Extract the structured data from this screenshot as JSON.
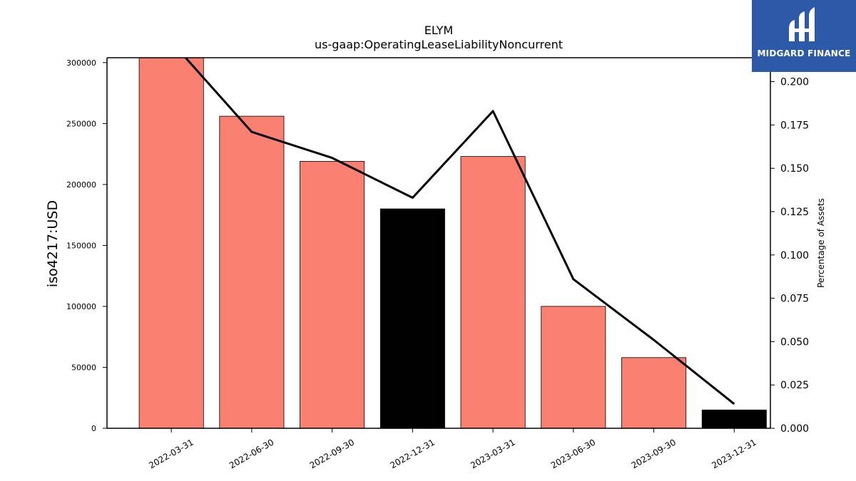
{
  "chart_data": {
    "type": "bar",
    "title": "ELYM",
    "subtitle": "us-gaap:OperatingLeaseLiabilityNoncurrent",
    "ylabel": "iso4217:USD",
    "y2label": "Percentage of Assets",
    "categories": [
      "2022-03-31",
      "2022-06-30",
      "2022-09-30",
      "2022-12-31",
      "2023-03-31",
      "2023-06-30",
      "2023-09-30",
      "2023-12-31"
    ],
    "ylim": [
      0,
      304000
    ],
    "y2lim": [
      0,
      0.2138
    ],
    "yticks": [
      0,
      50000,
      100000,
      150000,
      200000,
      250000,
      300000
    ],
    "y2ticks": [
      0.0,
      0.025,
      0.05,
      0.075,
      0.1,
      0.125,
      0.15,
      0.175,
      0.2
    ],
    "series": [
      {
        "type": "bar",
        "values": [
          304000,
          256000,
          219000,
          180000,
          223000,
          100000,
          58000,
          15000
        ],
        "colors": [
          "#fa8072",
          "#fa8072",
          "#fa8072",
          "#000000",
          "#fa8072",
          "#fa8072",
          "#fa8072",
          "#000000"
        ]
      },
      {
        "type": "line",
        "axis": "right",
        "values": [
          0.223,
          0.171,
          0.156,
          0.133,
          0.183,
          0.086,
          0.051,
          0.014
        ],
        "color": "#000000"
      }
    ],
    "grid": false
  },
  "logo": {
    "text": "MIDGARD FINANCE",
    "background": "#2d5aa8"
  }
}
